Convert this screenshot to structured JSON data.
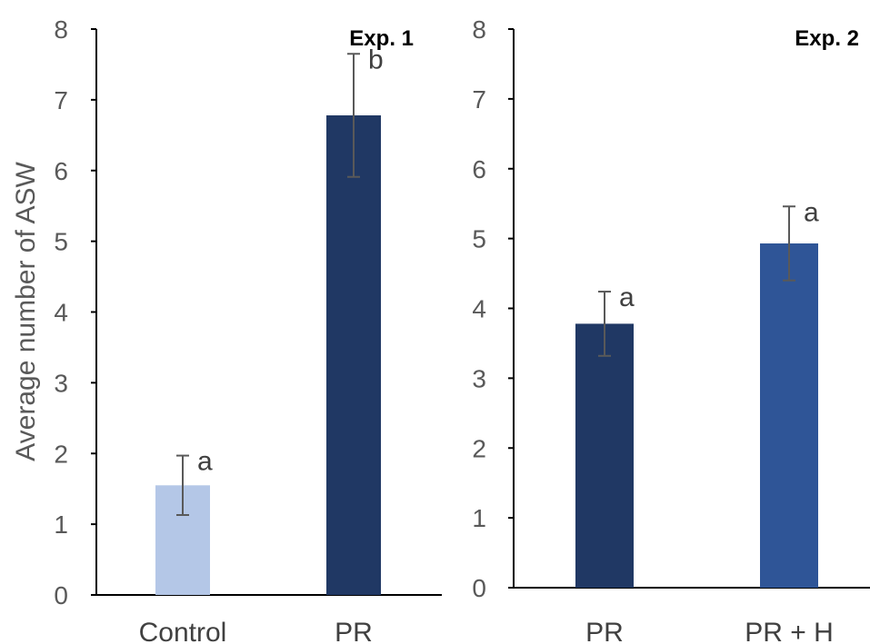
{
  "chart_data": [
    {
      "type": "bar",
      "title": "Exp. 1",
      "ylabel": "Average number of ASW",
      "xlabel": "",
      "ylim": [
        0,
        8
      ],
      "yticks": [
        0,
        1,
        2,
        3,
        4,
        5,
        6,
        7,
        8
      ],
      "grid": false,
      "categories": [
        "Control",
        "PR"
      ],
      "values": [
        1.55,
        6.78
      ],
      "errors": [
        0.42,
        0.87
      ],
      "significance_letters": [
        "a",
        "b"
      ],
      "colors": [
        "#b4c7e7",
        "#203864"
      ]
    },
    {
      "type": "bar",
      "title": "Exp. 2",
      "ylabel": "",
      "xlabel": "",
      "ylim": [
        0,
        8
      ],
      "yticks": [
        0,
        1,
        2,
        3,
        4,
        5,
        6,
        7,
        8
      ],
      "grid": false,
      "categories": [
        "PR",
        "PR + H"
      ],
      "values": [
        3.78,
        4.93
      ],
      "errors": [
        0.46,
        0.53
      ],
      "significance_letters": [
        "a",
        "a"
      ],
      "colors": [
        "#203864",
        "#2f5597"
      ]
    }
  ]
}
